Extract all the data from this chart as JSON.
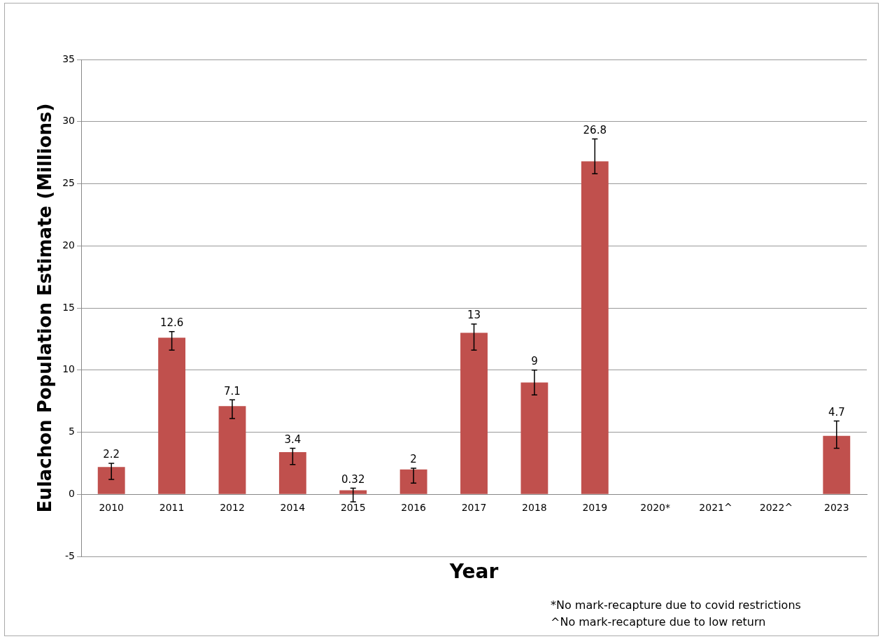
{
  "chart_data": {
    "type": "bar",
    "ylabel": "Eulachon Population Estimate (Millions)",
    "xlabel": "Year",
    "categories": [
      "2010",
      "2011",
      "2012",
      "2014",
      "2015",
      "2016",
      "2017",
      "2018",
      "2019",
      "2020*",
      "2021^",
      "2022^",
      "2023"
    ],
    "values": [
      2.2,
      12.6,
      7.1,
      3.4,
      0.32,
      2,
      13,
      9,
      26.8,
      null,
      null,
      null,
      4.7
    ],
    "errors": [
      [
        1.2,
        2.5
      ],
      [
        11.6,
        13.1
      ],
      [
        6.1,
        7.6
      ],
      [
        2.4,
        3.7
      ],
      [
        -0.6,
        0.5
      ],
      [
        0.9,
        2.1
      ],
      [
        11.6,
        13.7
      ],
      [
        8.0,
        10.0
      ],
      [
        25.8,
        28.6
      ],
      null,
      null,
      null,
      [
        3.7,
        5.9
      ]
    ],
    "color": "#c0504d",
    "data_labels": true,
    "ylim": [
      -5,
      35
    ],
    "yticks": [
      -5,
      0,
      5,
      10,
      15,
      20,
      25,
      30,
      35
    ],
    "grid": "y",
    "legend": false,
    "annotations": [
      "*No mark-recapture due to covid restrictions",
      "^No mark-recapture due to low return"
    ]
  }
}
